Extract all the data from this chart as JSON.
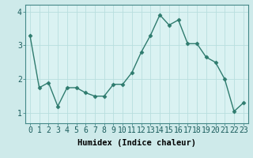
{
  "x": [
    0,
    1,
    2,
    3,
    4,
    5,
    6,
    7,
    8,
    9,
    10,
    11,
    12,
    13,
    14,
    15,
    16,
    17,
    18,
    19,
    20,
    21,
    22,
    23
  ],
  "y": [
    3.3,
    1.75,
    1.9,
    1.2,
    1.75,
    1.75,
    1.6,
    1.5,
    1.5,
    1.85,
    1.85,
    2.2,
    2.8,
    3.3,
    3.9,
    3.6,
    3.75,
    3.05,
    3.05,
    2.65,
    2.5,
    2.0,
    1.05,
    1.3
  ],
  "line_color": "#2e7b6e",
  "marker": "D",
  "marker_size": 2.5,
  "bg_color": "#ceeaea",
  "plot_bg_color": "#daf2f2",
  "grid_color": "#b8dede",
  "xlabel": "Humidex (Indice chaleur)",
  "ylim": [
    0.7,
    4.2
  ],
  "xlim": [
    -0.5,
    23.5
  ],
  "yticks": [
    1,
    2,
    3,
    4
  ],
  "xticks": [
    0,
    1,
    2,
    3,
    4,
    5,
    6,
    7,
    8,
    9,
    10,
    11,
    12,
    13,
    14,
    15,
    16,
    17,
    18,
    19,
    20,
    21,
    22,
    23
  ],
  "xlabel_fontsize": 7.5,
  "tick_fontsize": 7
}
